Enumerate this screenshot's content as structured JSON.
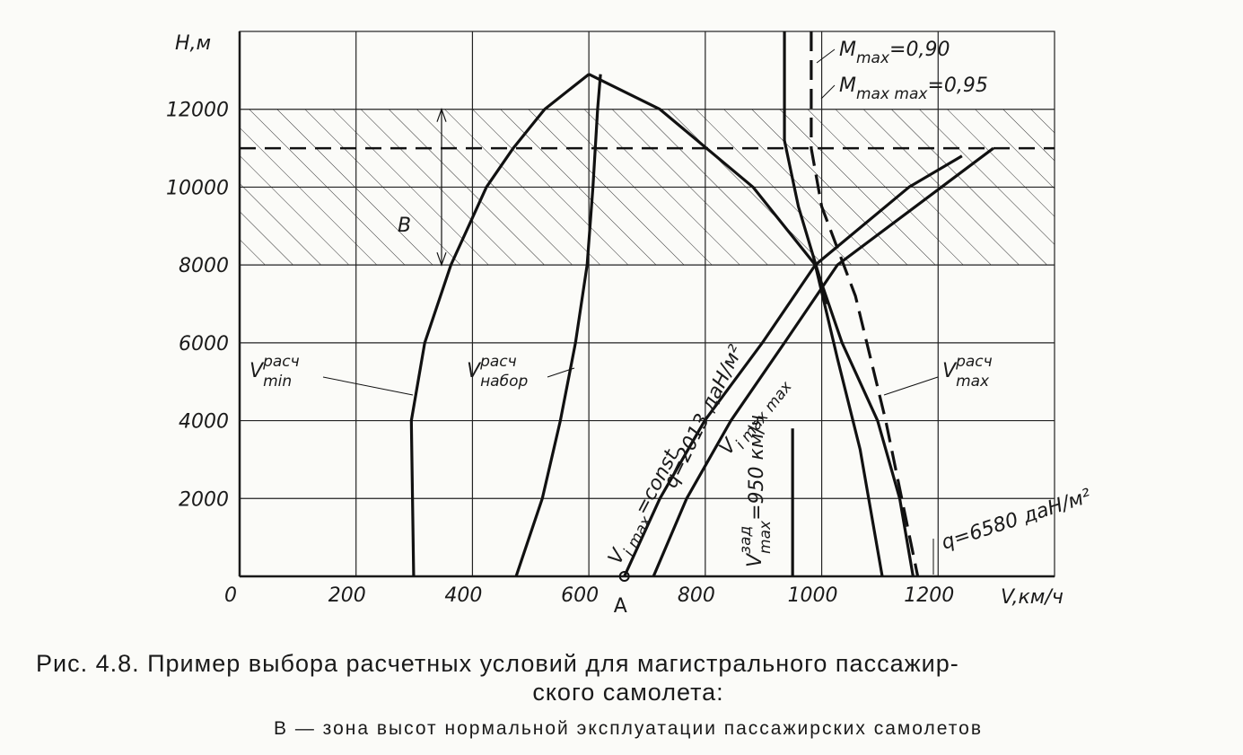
{
  "chart_data": {
    "type": "line",
    "x_label": "V,км/ч",
    "y_label": "Н,м",
    "xlim": [
      0,
      1400
    ],
    "ylim": [
      0,
      14000
    ],
    "xticks": [
      0,
      200,
      400,
      600,
      800,
      1000,
      1200
    ],
    "yticks": [
      2000,
      4000,
      6000,
      8000,
      10000,
      12000
    ],
    "grid": true,
    "zone": {
      "ylim": [
        8000,
        12000
      ],
      "label": "В"
    },
    "dashed_level": 11000,
    "point": {
      "x": 661,
      "y": 0,
      "label": "A"
    },
    "series": [
      {
        "style": "solid",
        "x": [
          299,
          297,
          295,
          318,
          363,
          424,
          470,
          524,
          600
        ],
        "values": [
          0,
          2000,
          4000,
          6000,
          8000,
          10000,
          11000,
          12000,
          12900
        ]
      },
      {
        "style": "solid",
        "x": [
          475,
          520,
          551,
          577,
          597,
          607,
          615,
          620
        ],
        "values": [
          0,
          2000,
          4000,
          6000,
          8000,
          10000,
          12000,
          12900
        ]
      },
      {
        "style": "solid",
        "x": [
          600,
          722,
          882,
          989,
          1035,
          1096,
          1134,
          1157
        ],
        "values": [
          12900,
          12000,
          10000,
          8000,
          6000,
          4000,
          2000,
          0
        ]
      },
      {
        "style": "solid",
        "x": [
          989,
          1027,
          1066,
          1104
        ],
        "values": [
          8000,
          5600,
          3260,
          0
        ]
      },
      {
        "style": "solid",
        "x": [
          661,
          722,
          799,
          898,
          989,
          1150,
          1241
        ],
        "values": [
          0,
          2000,
          4000,
          6000,
          8000,
          10000,
          10800
        ]
      },
      {
        "style": "solid",
        "x": [
          711,
          768,
          844,
          936,
          1027,
          1295
        ],
        "values": [
          0,
          2000,
          4000,
          6000,
          8000,
          11000
        ]
      },
      {
        "style": "solid",
        "x": [
          936,
          936,
          960,
          990,
          1010
        ],
        "values": [
          14000,
          11200,
          9500,
          8000,
          7000
        ]
      },
      {
        "style": "dashed",
        "x": [
          982,
          982,
          1000,
          1058,
          1110,
          1165
        ],
        "values": [
          14000,
          11000,
          9500,
          7200,
          4000,
          0
        ]
      },
      {
        "style": "solid",
        "x": [
          950,
          950
        ],
        "values": [
          0,
          3800
        ]
      }
    ],
    "annotations": [
      {
        "parts": [
          {
            "t": "V"
          },
          {
            "t": "расч",
            "pos": "sup"
          },
          {
            "t": "min",
            "pos": "sub"
          }
        ]
      },
      {
        "parts": [
          {
            "t": "V"
          },
          {
            "t": "расч",
            "pos": "sup"
          },
          {
            "t": "набор",
            "pos": "sub"
          }
        ]
      },
      {
        "parts": [
          {
            "t": "V"
          },
          {
            "t": "расч",
            "pos": "sup"
          },
          {
            "t": "max",
            "pos": "sub"
          }
        ]
      },
      {
        "parts": [
          {
            "t": "M"
          },
          {
            "t": "max",
            "pos": "sub"
          },
          {
            "t": "=0,90"
          }
        ]
      },
      {
        "parts": [
          {
            "t": "M"
          },
          {
            "t": "max max",
            "pos": "sub"
          },
          {
            "t": "=0,95"
          }
        ]
      },
      {
        "parts": [
          {
            "t": "V"
          },
          {
            "t": "i max",
            "pos": "sub"
          },
          {
            "t": "=const"
          }
        ]
      },
      {
        "parts": [
          {
            "t": "q=2013 даН/м²"
          }
        ]
      },
      {
        "parts": [
          {
            "t": "V"
          },
          {
            "t": "i max max",
            "pos": "sub"
          }
        ]
      },
      {
        "parts": [
          {
            "t": "V"
          },
          {
            "t": "зад",
            "pos": "sup"
          },
          {
            "t": "max",
            "pos": "sub"
          },
          {
            "t": "=950 км/ч"
          }
        ]
      },
      {
        "parts": [
          {
            "t": "q=6580 даН/м²"
          }
        ]
      }
    ],
    "caption": [
      "Рис. 4.8.  Пример выбора расчетных условий для магистрального пассажир-",
      "ского самолета:",
      "В — зона высот нормальной эксплуатации пассажирских самолетов"
    ]
  }
}
